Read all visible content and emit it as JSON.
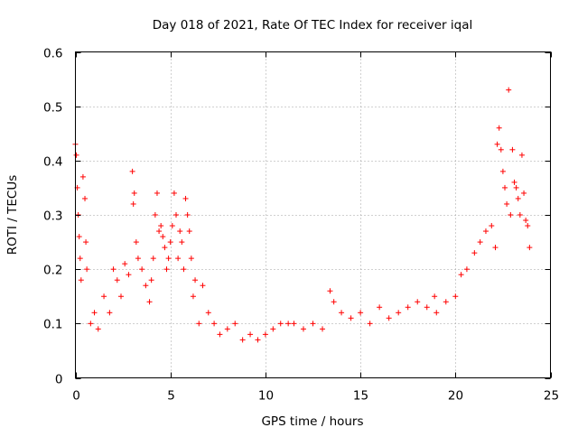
{
  "chart_data": {
    "type": "scatter",
    "title": "Day 018 of 2021, Rate Of TEC Index for receiver iqal",
    "xlabel": "GPS time / hours",
    "ylabel": "ROTI / TECUs",
    "xlim": [
      0,
      25
    ],
    "ylim": [
      0,
      0.6
    ],
    "xticks": [
      0,
      5,
      10,
      15,
      20,
      25
    ],
    "yticks": [
      0,
      0.1,
      0.2,
      0.3,
      0.4,
      0.5,
      0.6
    ],
    "xtick_labels": [
      "0",
      "5",
      "10",
      "15",
      "20",
      "25"
    ],
    "ytick_labels": [
      "0",
      "0.1",
      "0.2",
      "0.3",
      "0.4",
      "0.5",
      "0.6"
    ],
    "grid": true,
    "marker": "plus",
    "color": "#ff0000",
    "series": [
      {
        "x": [
          0.0,
          0.05,
          0.1,
          0.15,
          0.2,
          0.25,
          0.3,
          0.4,
          0.5,
          0.55,
          0.6,
          0.8,
          1.0,
          1.2,
          1.5,
          1.8,
          2.0,
          2.2,
          2.4,
          2.6,
          2.8,
          3.0,
          3.05,
          3.1,
          3.2,
          3.3,
          3.5,
          3.7,
          3.9,
          4.0,
          4.1,
          4.2,
          4.3,
          4.4,
          4.5,
          4.6,
          4.7,
          4.8,
          4.9,
          5.0,
          5.1,
          5.2,
          5.3,
          5.4,
          5.5,
          5.6,
          5.7,
          5.8,
          5.9,
          6.0,
          6.1,
          6.2,
          6.3,
          6.5,
          6.7,
          7.0,
          7.3,
          7.6,
          8.0,
          8.4,
          8.8,
          9.2,
          9.6,
          10.0,
          10.4,
          10.8,
          11.2,
          11.5,
          12.0,
          12.5,
          13.0,
          13.4,
          13.6,
          14.0,
          14.5,
          15.0,
          15.5,
          16.0,
          16.5,
          17.0,
          17.5,
          18.0,
          18.5,
          18.9,
          19.0,
          19.5,
          20.0,
          20.3,
          20.6,
          21.0,
          21.3,
          21.6,
          21.9,
          22.1,
          22.2,
          22.3,
          22.4,
          22.5,
          22.6,
          22.7,
          22.8,
          22.9,
          23.0,
          23.1,
          23.2,
          23.3,
          23.4,
          23.5,
          23.6,
          23.7,
          23.8,
          23.9
        ],
        "y": [
          0.43,
          0.41,
          0.35,
          0.3,
          0.26,
          0.22,
          0.18,
          0.37,
          0.33,
          0.25,
          0.2,
          0.1,
          0.12,
          0.09,
          0.15,
          0.12,
          0.2,
          0.18,
          0.15,
          0.21,
          0.19,
          0.38,
          0.32,
          0.34,
          0.25,
          0.22,
          0.2,
          0.17,
          0.14,
          0.18,
          0.22,
          0.3,
          0.34,
          0.27,
          0.28,
          0.26,
          0.24,
          0.2,
          0.22,
          0.25,
          0.28,
          0.34,
          0.3,
          0.22,
          0.27,
          0.25,
          0.2,
          0.33,
          0.3,
          0.27,
          0.22,
          0.15,
          0.18,
          0.1,
          0.17,
          0.12,
          0.1,
          0.08,
          0.09,
          0.1,
          0.07,
          0.08,
          0.07,
          0.08,
          0.09,
          0.1,
          0.1,
          0.1,
          0.09,
          0.1,
          0.09,
          0.16,
          0.14,
          0.12,
          0.11,
          0.12,
          0.1,
          0.13,
          0.11,
          0.12,
          0.13,
          0.14,
          0.13,
          0.15,
          0.12,
          0.14,
          0.15,
          0.19,
          0.2,
          0.23,
          0.25,
          0.27,
          0.28,
          0.24,
          0.43,
          0.46,
          0.42,
          0.38,
          0.35,
          0.32,
          0.53,
          0.3,
          0.42,
          0.36,
          0.35,
          0.33,
          0.3,
          0.41,
          0.34,
          0.29,
          0.28,
          0.24
        ]
      }
    ]
  }
}
